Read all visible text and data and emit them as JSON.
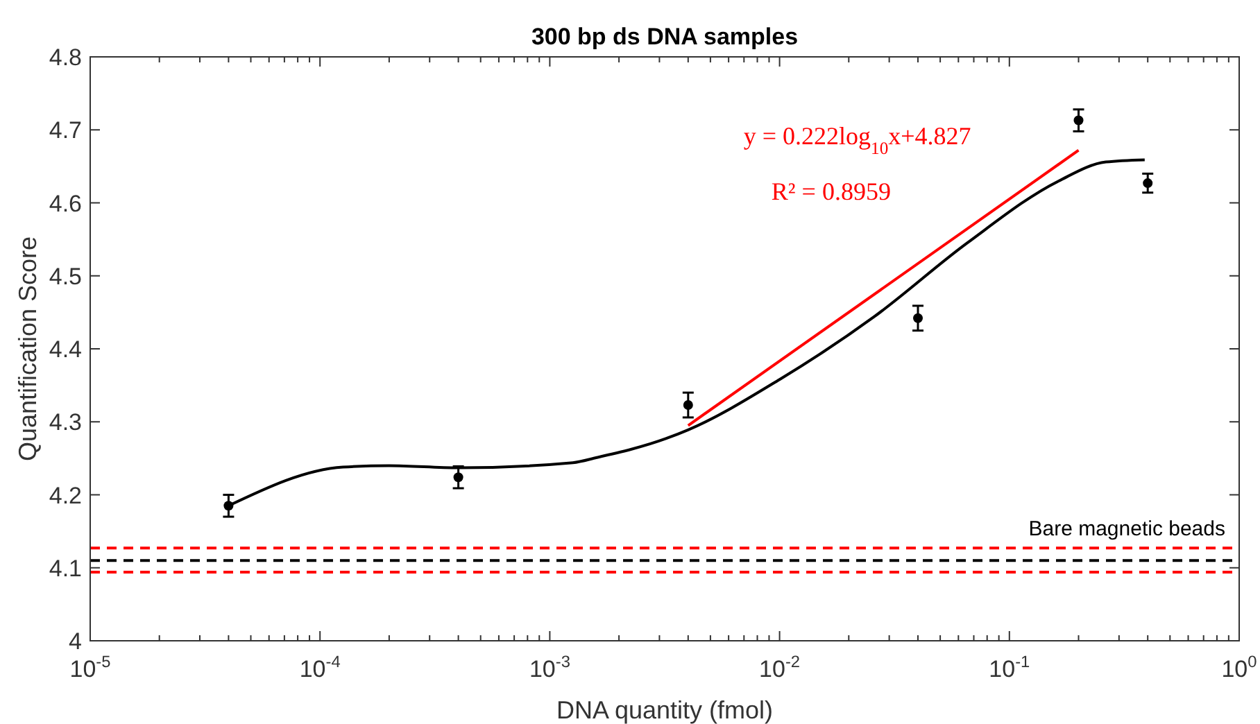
{
  "chart_data": {
    "type": "scatter",
    "title": "300 bp ds DNA samples",
    "xlabel": "DNA quantity (fmol)",
    "ylabel": "Quantification Score",
    "log": "x",
    "xlim": [
      1e-05,
      1
    ],
    "ylim": [
      4,
      4.8
    ],
    "xticks": [
      {
        "value": 1e-05,
        "label": "10$^{-5}$"
      },
      {
        "value": 0.0001,
        "label": "10$^{-4}$"
      },
      {
        "value": 0.001,
        "label": "10$^{-3}$"
      },
      {
        "value": 0.01,
        "label": "10$^{-2}$"
      },
      {
        "value": 0.1,
        "label": "10$^{-1}$"
      },
      {
        "value": 1,
        "label": "10$^{0}$"
      }
    ],
    "yticks": [
      4,
      4.1,
      4.2,
      4.3,
      4.4,
      4.5,
      4.6,
      4.7,
      4.8
    ],
    "grid": false,
    "series": [
      {
        "color": "#000000",
        "marker": "circle",
        "x": [
          4e-05,
          0.0004,
          0.004,
          0.04,
          0.2,
          0.4
        ],
        "values": [
          4.185,
          4.224,
          4.323,
          4.442,
          4.713,
          4.627
        ],
        "errors": [
          0.015,
          0.015,
          0.017,
          0.017,
          0.015,
          0.013
        ]
      },
      {
        "type": "line",
        "color": "#000000",
        "line_style": "solid",
        "x": [
          4e-05,
          0.000126,
          0.0002,
          0.0004,
          0.00126,
          0.0016,
          0.0032,
          0.004,
          0.01,
          0.0258,
          0.0655,
          0.164,
          0.263,
          0.388
        ],
        "values": [
          4.185,
          4.238,
          4.24,
          4.237,
          4.244,
          4.251,
          4.277,
          4.289,
          4.358,
          4.444,
          4.545,
          4.63,
          4.656,
          4.659
        ]
      },
      {
        "type": "line",
        "color": "#ff0000",
        "line_style": "solid",
        "x": [
          0.004,
          0.2
        ],
        "values": [
          4.295,
          4.672
        ]
      }
    ],
    "ref_lines": [
      {
        "axis": "y",
        "value": 4.127,
        "color": "#ff0000",
        "line_style": "dashed"
      },
      {
        "axis": "y",
        "value": 4.11,
        "color": "#000000",
        "line_style": "dashed",
        "label": "Bare magnetic beads"
      },
      {
        "axis": "y",
        "value": 4.094,
        "color": "#ff0000",
        "line_style": "dashed"
      }
    ],
    "annotations": [
      "y = 0.222log$_{10}$x+4.827",
      "R² = 0.8959"
    ]
  }
}
